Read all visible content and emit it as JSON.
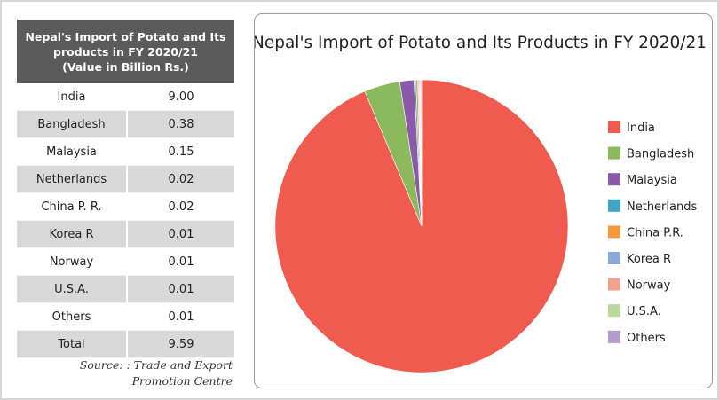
{
  "table": {
    "title": "Nepal's Import of Potato and Its products in FY 2020/21",
    "unit": "(Value in Billion Rs.)",
    "rows": [
      [
        "India",
        "9.00"
      ],
      [
        "Bangladesh",
        "0.38"
      ],
      [
        "Malaysia",
        "0.15"
      ],
      [
        "Netherlands",
        "0.02"
      ],
      [
        "China P. R.",
        "0.02"
      ],
      [
        "Korea R",
        "0.01"
      ],
      [
        "Norway",
        "0.01"
      ],
      [
        "U.S.A.",
        "0.01"
      ],
      [
        "Others",
        "0.01"
      ],
      [
        "Total",
        "9.59"
      ]
    ]
  },
  "source": "Source: : Trade and Export Promotion Centre",
  "chart_data": {
    "type": "pie",
    "title": "Nepal's Import of Potato and Its Products in FY 2020/21",
    "categories": [
      "India",
      "Bangladesh",
      "Malaysia",
      "Netherlands",
      "China P.R.",
      "Korea R",
      "Norway",
      "U.S.A.",
      "Others"
    ],
    "values": [
      9.0,
      0.38,
      0.15,
      0.02,
      0.02,
      0.01,
      0.01,
      0.01,
      0.01
    ],
    "colors": [
      "#ef5b4f",
      "#8cb95b",
      "#8b5aa8",
      "#3fa6c3",
      "#f5993b",
      "#8fa8dc",
      "#f4a08f",
      "#b7d99b",
      "#b69bd1"
    ],
    "legend": "right"
  }
}
